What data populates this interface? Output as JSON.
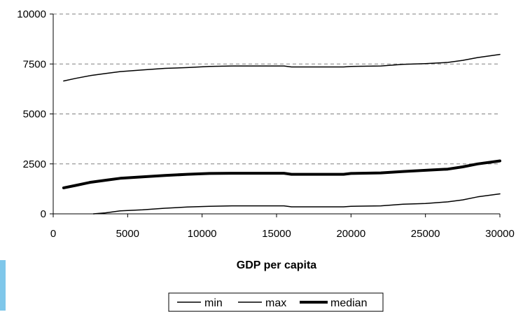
{
  "chart_data": {
    "type": "line",
    "title": "",
    "xlabel": "GDP per capita",
    "ylabel": "",
    "xlim": [
      0,
      30000
    ],
    "ylim": [
      0,
      10000
    ],
    "x_ticks": [
      "0",
      "5000",
      "10000",
      "15000",
      "20000",
      "25000",
      "30000"
    ],
    "y_ticks": [
      "0",
      "2500",
      "5000",
      "7500",
      "10000"
    ],
    "grid": "horizontal dashed",
    "legend_position": "bottom",
    "series": [
      {
        "name": "min",
        "line": "thin",
        "x": [
          2700,
          3500,
          4500,
          6000,
          7500,
          9000,
          10500,
          12000,
          14000,
          15500,
          16000,
          18000,
          19500,
          20000,
          22000,
          23500,
          25000,
          26500,
          27500,
          28500,
          30000
        ],
        "y": [
          0,
          50,
          150,
          200,
          280,
          340,
          380,
          400,
          400,
          400,
          350,
          350,
          350,
          380,
          400,
          480,
          520,
          600,
          700,
          850,
          1000
        ]
      },
      {
        "name": "max",
        "line": "thin",
        "x": [
          700,
          1500,
          2500,
          3500,
          4500,
          6000,
          7500,
          9000,
          10500,
          12000,
          14000,
          15500,
          16000,
          18000,
          19500,
          20000,
          22000,
          23500,
          25000,
          26500,
          27500,
          28500,
          30000
        ],
        "y": [
          6650,
          6780,
          6920,
          7020,
          7120,
          7200,
          7280,
          7320,
          7380,
          7400,
          7400,
          7400,
          7350,
          7350,
          7350,
          7380,
          7400,
          7480,
          7520,
          7580,
          7680,
          7820,
          7980
        ]
      },
      {
        "name": "median",
        "line": "thick",
        "x": [
          700,
          1500,
          2500,
          3500,
          4500,
          6000,
          7500,
          9000,
          10500,
          12000,
          14000,
          15500,
          16000,
          18000,
          19500,
          20000,
          22000,
          23500,
          25000,
          26500,
          27500,
          28500,
          30000
        ],
        "y": [
          1300,
          1420,
          1580,
          1680,
          1780,
          1850,
          1920,
          1980,
          2020,
          2030,
          2030,
          2030,
          1980,
          1980,
          1980,
          2020,
          2050,
          2120,
          2180,
          2240,
          2350,
          2500,
          2650
        ]
      }
    ]
  },
  "colors": {
    "line": "#000000",
    "grid": "#808080",
    "side_bar": "#7fc7ea"
  }
}
